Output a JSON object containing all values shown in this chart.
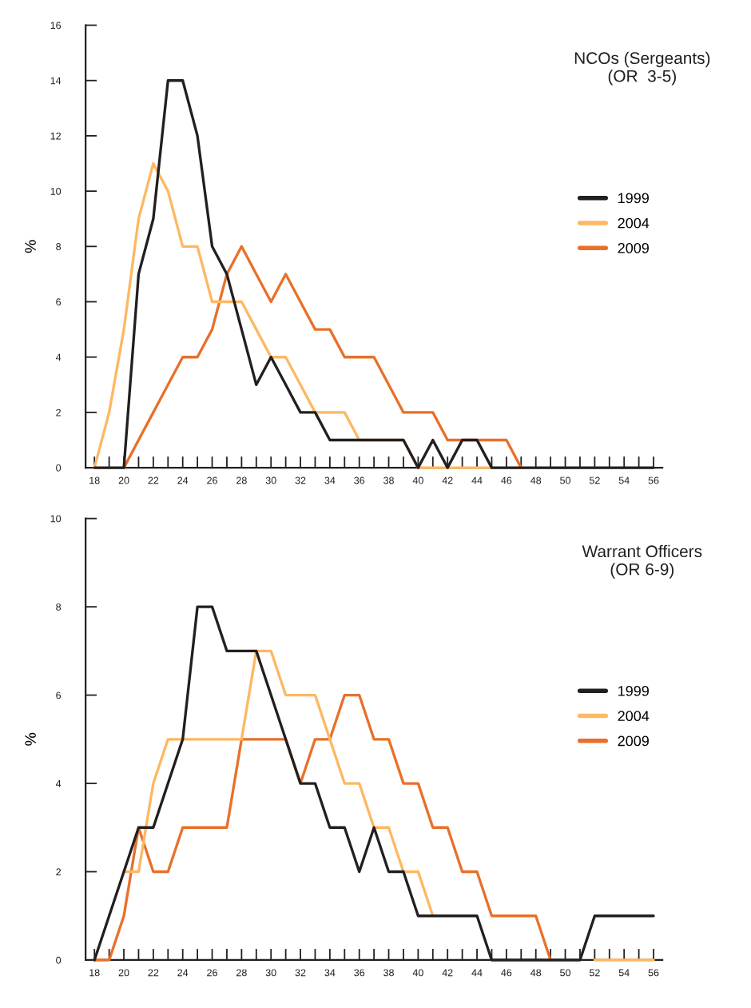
{
  "chart_data": [
    {
      "type": "line",
      "title": "NCOs (Sergeants)\n(OR  3-5)",
      "ylabel": "%",
      "x": [
        18,
        19,
        20,
        21,
        22,
        23,
        24,
        25,
        26,
        27,
        28,
        29,
        30,
        31,
        32,
        33,
        34,
        35,
        36,
        37,
        38,
        39,
        40,
        41,
        42,
        43,
        44,
        45,
        46,
        47,
        48,
        49,
        50,
        51,
        52,
        53,
        54,
        55,
        56
      ],
      "series": [
        {
          "name": "1999",
          "color": "#231f20",
          "values": [
            0,
            0,
            0,
            7,
            9,
            14,
            14,
            12,
            8,
            7,
            5,
            3,
            4,
            3,
            2,
            2,
            1,
            1,
            1,
            1,
            1,
            1,
            0,
            1,
            0,
            1,
            1,
            0,
            0,
            0,
            0,
            0,
            0,
            0,
            0,
            0,
            0,
            0,
            0
          ]
        },
        {
          "name": "2004",
          "color": "#fdb863",
          "values": [
            0,
            2,
            5,
            9,
            11,
            10,
            8,
            8,
            6,
            6,
            6,
            5,
            4,
            4,
            3,
            2,
            2,
            2,
            1,
            1,
            1,
            1,
            0,
            0,
            0,
            0,
            0,
            0,
            null,
            null,
            null,
            null,
            null,
            null,
            null,
            null,
            null,
            null,
            null
          ]
        },
        {
          "name": "2009",
          "color": "#e8702a",
          "values": [
            null,
            null,
            0,
            1,
            2,
            3,
            4,
            4,
            5,
            7,
            8,
            7,
            6,
            7,
            6,
            5,
            5,
            4,
            4,
            4,
            3,
            2,
            2,
            2,
            1,
            1,
            1,
            1,
            1,
            0,
            null,
            null,
            null,
            null,
            null,
            null,
            null,
            null,
            null
          ]
        }
      ],
      "xlim": [
        17.4,
        56.6
      ],
      "xticks": [
        18,
        {
          "value": 19,
          "label": null
        },
        20,
        {
          "value": 21,
          "label": null
        },
        22,
        {
          "value": 23,
          "label": null
        },
        24,
        {
          "value": 25,
          "label": null
        },
        26,
        {
          "value": 27,
          "label": null
        },
        28,
        {
          "value": 29,
          "label": null
        },
        30,
        {
          "value": 31,
          "label": null
        },
        32,
        {
          "value": 33,
          "label": null
        },
        34,
        {
          "value": 35,
          "label": null
        },
        36,
        {
          "value": 37,
          "label": null
        },
        38,
        {
          "value": 39,
          "label": null
        },
        40,
        {
          "value": 41,
          "label": null
        },
        42,
        {
          "value": 43,
          "label": null
        },
        44,
        {
          "value": 45,
          "label": null
        },
        46,
        {
          "value": 47,
          "label": null
        },
        48,
        {
          "value": 49,
          "label": null
        },
        50,
        {
          "value": 51,
          "label": null
        },
        52,
        {
          "value": 53,
          "label": null
        },
        54,
        {
          "value": 55,
          "label": null
        },
        56
      ],
      "ylim": [
        0,
        16
      ],
      "yticks": [
        0,
        2,
        4,
        6,
        8,
        10,
        12,
        14,
        16
      ],
      "grid": false,
      "legend": "right",
      "marker": "none",
      "line_style": "solid"
    },
    {
      "type": "line",
      "title": "Warrant Officers\n(OR 6-9)",
      "ylabel": "%",
      "x": [
        18,
        19,
        20,
        21,
        22,
        23,
        24,
        25,
        26,
        27,
        28,
        29,
        30,
        31,
        32,
        33,
        34,
        35,
        36,
        37,
        38,
        39,
        40,
        41,
        42,
        43,
        44,
        45,
        46,
        47,
        48,
        49,
        50,
        51,
        52,
        53,
        54,
        55,
        56
      ],
      "series": [
        {
          "name": "1999",
          "color": "#231f20",
          "values": [
            0,
            1,
            2,
            3,
            3,
            4,
            5,
            8,
            8,
            7,
            7,
            7,
            6,
            5,
            4,
            4,
            3,
            3,
            2,
            3,
            2,
            2,
            1,
            1,
            1,
            1,
            1,
            0,
            0,
            0,
            0,
            0,
            0,
            0,
            1,
            1,
            1,
            1,
            1
          ]
        },
        {
          "name": "2004",
          "color": "#fdb863",
          "values": [
            null,
            null,
            2,
            2,
            4,
            5,
            5,
            5,
            5,
            5,
            5,
            7,
            7,
            6,
            6,
            6,
            5,
            4,
            4,
            3,
            3,
            2,
            2,
            1,
            null,
            null,
            null,
            null,
            null,
            null,
            null,
            null,
            null,
            null,
            0,
            0,
            0,
            0,
            0
          ]
        },
        {
          "name": "2009",
          "color": "#e8702a",
          "values": [
            0,
            0,
            1,
            3,
            2,
            2,
            3,
            3,
            3,
            3,
            5,
            5,
            5,
            5,
            4,
            5,
            5,
            6,
            6,
            5,
            5,
            4,
            4,
            3,
            3,
            2,
            2,
            1,
            1,
            1,
            1,
            0,
            null,
            null,
            null,
            null,
            null,
            null,
            null
          ]
        }
      ],
      "xlim": [
        17.4,
        56.6
      ],
      "xticks": [
        18,
        {
          "value": 19,
          "label": null
        },
        20,
        {
          "value": 21,
          "label": null
        },
        22,
        {
          "value": 23,
          "label": null
        },
        24,
        {
          "value": 25,
          "label": null
        },
        26,
        {
          "value": 27,
          "label": null
        },
        28,
        {
          "value": 29,
          "label": null
        },
        30,
        {
          "value": 31,
          "label": null
        },
        32,
        {
          "value": 33,
          "label": null
        },
        34,
        {
          "value": 35,
          "label": null
        },
        36,
        {
          "value": 37,
          "label": null
        },
        38,
        {
          "value": 39,
          "label": null
        },
        40,
        {
          "value": 41,
          "label": null
        },
        42,
        {
          "value": 43,
          "label": null
        },
        44,
        {
          "value": 45,
          "label": null
        },
        46,
        {
          "value": 47,
          "label": null
        },
        48,
        {
          "value": 49,
          "label": null
        },
        50,
        {
          "value": 51,
          "label": null
        },
        52,
        {
          "value": 53,
          "label": null
        },
        54,
        {
          "value": 55,
          "label": null
        },
        56
      ],
      "ylim": [
        0,
        10
      ],
      "yticks": [
        0,
        2,
        4,
        6,
        8,
        10
      ],
      "grid": false,
      "legend": "right",
      "marker": "none",
      "line_style": "solid"
    }
  ]
}
